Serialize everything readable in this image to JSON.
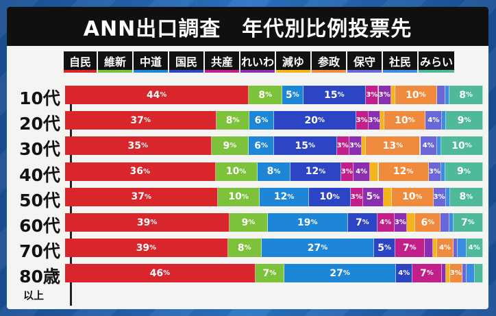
{
  "title": "ANN出口調査　年代別比例投票先",
  "chart_data": {
    "type": "bar",
    "stacked": true,
    "orientation": "horizontal",
    "title": "ANN出口調査　年代別比例投票先",
    "categories": [
      "10代",
      "20代",
      "30代",
      "40代",
      "50代",
      "60代",
      "70代",
      "80歳"
    ],
    "category_sublabels": {
      "80歳": "以上"
    },
    "series": [
      {
        "name": "自民",
        "color": "#d8262c",
        "values": [
          44,
          37,
          35,
          36,
          37,
          39,
          39,
          46
        ]
      },
      {
        "name": "維新",
        "color": "#7cc23b",
        "values": [
          8,
          8,
          9,
          10,
          10,
          9,
          8,
          7
        ]
      },
      {
        "name": "中道",
        "color": "#1d86d6",
        "values": [
          5,
          6,
          6,
          8,
          12,
          19,
          27,
          27
        ]
      },
      {
        "name": "国民",
        "color": "#2b45c4",
        "values": [
          15,
          20,
          15,
          12,
          10,
          7,
          5,
          4
        ]
      },
      {
        "name": "共産",
        "color": "#c21f8a",
        "values": [
          3,
          3,
          3,
          3,
          3,
          4,
          7,
          7
        ]
      },
      {
        "name": "れいわ",
        "color": "#8a2fb0",
        "values": [
          3,
          3,
          3,
          4,
          5,
          3,
          2,
          1
        ]
      },
      {
        "name": "減ゆ",
        "color": "#f6b41c",
        "values": [
          1,
          1,
          1,
          2,
          2,
          2,
          1,
          1
        ]
      },
      {
        "name": "参政",
        "color": "#f08a3c",
        "values": [
          10,
          10,
          13,
          12,
          10,
          6,
          4,
          3
        ]
      },
      {
        "name": "保守",
        "color": "#6a68d8",
        "values": [
          2,
          4,
          4,
          3,
          3,
          2,
          1,
          1
        ]
      },
      {
        "name": "社民",
        "color": "#3a8de0",
        "values": [
          1,
          1,
          1,
          1,
          1,
          1,
          2,
          2
        ]
      },
      {
        "name": "みらい",
        "color": "#4fba9a",
        "values": [
          8,
          9,
          10,
          9,
          8,
          7,
          4,
          2
        ]
      }
    ],
    "label_suffix": "%"
  }
}
